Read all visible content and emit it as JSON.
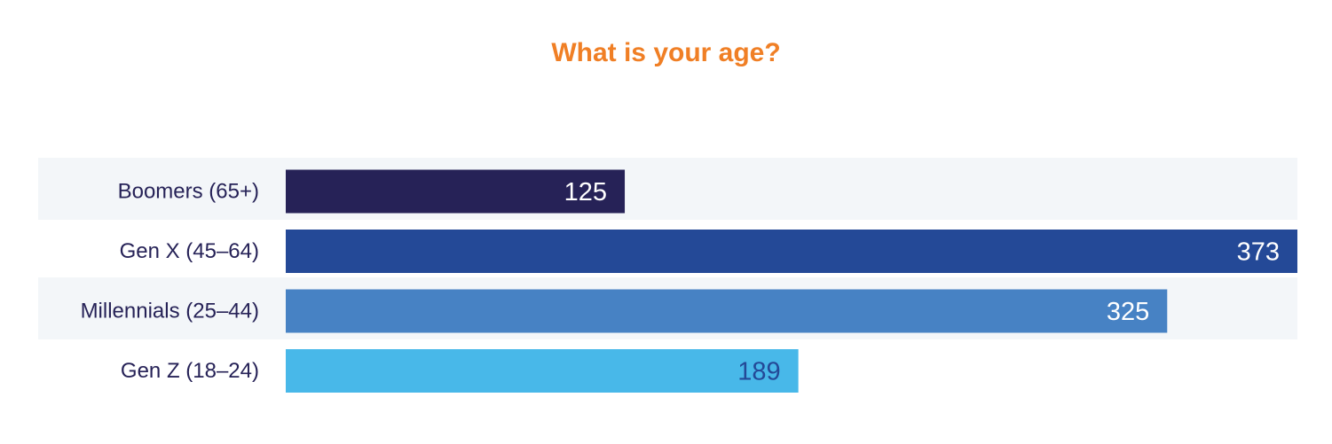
{
  "chart_data": {
    "type": "bar",
    "orientation": "horizontal",
    "title": "What is your age?",
    "categories": [
      "Boomers (65+)",
      "Gen X (45–64)",
      "Millennials (25–44)",
      "Gen Z (18–24)"
    ],
    "values": [
      125,
      373,
      325,
      189
    ],
    "xlim": [
      0,
      373
    ],
    "grid": false,
    "legend": "none",
    "colors": {
      "title": "#f07f25",
      "category_label": "#262257",
      "row_band": "#f3f6f9",
      "bars": [
        "#262257",
        "#244997",
        "#4782c4",
        "#48b8e9"
      ],
      "value_labels": [
        "#ffffff",
        "#ffffff",
        "#ffffff",
        "#244997"
      ]
    }
  }
}
